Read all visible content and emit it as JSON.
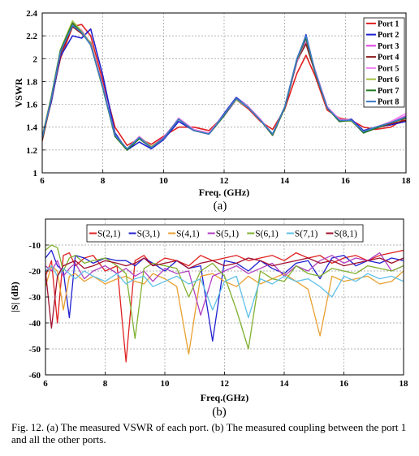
{
  "chart_data": [
    {
      "type": "line",
      "panel_label": "(a)",
      "xlabel": "Freq. (GHz)",
      "ylabel": "VSWR",
      "xlim": [
        6,
        18
      ],
      "ylim": [
        1,
        2.4
      ],
      "xticks": [
        6,
        8,
        10,
        12,
        14,
        16,
        18
      ],
      "yticks": [
        1,
        1.2,
        1.4,
        1.6,
        1.8,
        2,
        2.2,
        2.4
      ],
      "grid": true,
      "legend_position": "top-right",
      "x": [
        6.0,
        6.3,
        6.6,
        7.0,
        7.3,
        7.6,
        8.0,
        8.4,
        8.8,
        9.2,
        9.6,
        10.0,
        10.5,
        11.0,
        11.5,
        12.0,
        12.4,
        12.8,
        13.2,
        13.6,
        14.0,
        14.4,
        14.7,
        15.0,
        15.4,
        15.8,
        16.2,
        16.6,
        17.0,
        17.5,
        18.0
      ],
      "series": [
        {
          "name": "Port 1",
          "color": "#e02020",
          "values": [
            1.3,
            1.65,
            2.0,
            2.28,
            2.3,
            2.2,
            1.8,
            1.4,
            1.24,
            1.3,
            1.25,
            1.32,
            1.4,
            1.4,
            1.37,
            1.5,
            1.64,
            1.56,
            1.45,
            1.38,
            1.56,
            1.87,
            2.03,
            1.85,
            1.55,
            1.48,
            1.46,
            1.4,
            1.38,
            1.4,
            1.48
          ]
        },
        {
          "name": "Port 2",
          "color": "#2020d0",
          "values": [
            1.32,
            1.62,
            2.02,
            2.2,
            2.18,
            2.26,
            1.85,
            1.35,
            1.2,
            1.27,
            1.21,
            1.29,
            1.45,
            1.37,
            1.34,
            1.52,
            1.66,
            1.58,
            1.46,
            1.33,
            1.58,
            1.97,
            2.21,
            1.88,
            1.58,
            1.45,
            1.47,
            1.37,
            1.4,
            1.42,
            1.45
          ]
        },
        {
          "name": "Port 3",
          "color": "#e040e0",
          "values": [
            1.3,
            1.64,
            2.05,
            2.32,
            2.24,
            2.12,
            1.75,
            1.33,
            1.21,
            1.31,
            1.23,
            1.31,
            1.47,
            1.37,
            1.34,
            1.5,
            1.64,
            1.57,
            1.46,
            1.33,
            1.57,
            1.97,
            2.16,
            1.9,
            1.58,
            1.46,
            1.46,
            1.36,
            1.39,
            1.44,
            1.5
          ]
        },
        {
          "name": "Port 4",
          "color": "#8b1a1a",
          "values": [
            1.28,
            1.64,
            2.04,
            2.28,
            2.22,
            2.14,
            1.75,
            1.32,
            1.2,
            1.3,
            1.22,
            1.3,
            1.47,
            1.37,
            1.34,
            1.5,
            1.65,
            1.57,
            1.46,
            1.33,
            1.57,
            1.98,
            2.13,
            1.88,
            1.57,
            1.45,
            1.46,
            1.35,
            1.39,
            1.43,
            1.46
          ]
        },
        {
          "name": "Port 5",
          "color": "#f080f0",
          "values": [
            1.31,
            1.66,
            2.06,
            2.3,
            2.25,
            2.13,
            1.76,
            1.33,
            1.21,
            1.32,
            1.23,
            1.3,
            1.48,
            1.38,
            1.35,
            1.51,
            1.65,
            1.58,
            1.47,
            1.34,
            1.58,
            1.98,
            2.17,
            1.9,
            1.58,
            1.47,
            1.46,
            1.36,
            1.4,
            1.45,
            1.52
          ]
        },
        {
          "name": "Port 6",
          "color": "#a0c040",
          "values": [
            1.32,
            1.67,
            2.08,
            2.33,
            2.24,
            2.13,
            1.74,
            1.33,
            1.21,
            1.31,
            1.23,
            1.3,
            1.47,
            1.37,
            1.34,
            1.51,
            1.64,
            1.57,
            1.46,
            1.34,
            1.58,
            1.99,
            2.19,
            1.89,
            1.57,
            1.46,
            1.45,
            1.36,
            1.4,
            1.44,
            1.49
          ]
        },
        {
          "name": "Port 7",
          "color": "#207a20",
          "values": [
            1.3,
            1.66,
            2.07,
            2.31,
            2.23,
            2.12,
            1.74,
            1.32,
            1.2,
            1.3,
            1.22,
            1.3,
            1.47,
            1.37,
            1.34,
            1.5,
            1.65,
            1.57,
            1.46,
            1.33,
            1.57,
            1.99,
            2.18,
            1.88,
            1.57,
            1.45,
            1.46,
            1.35,
            1.39,
            1.44,
            1.48
          ]
        },
        {
          "name": "Port 8",
          "color": "#3a7ac8",
          "values": [
            1.31,
            1.65,
            2.06,
            2.29,
            2.23,
            2.12,
            1.75,
            1.33,
            1.21,
            1.31,
            1.22,
            1.3,
            1.47,
            1.37,
            1.34,
            1.51,
            1.65,
            1.57,
            1.46,
            1.34,
            1.58,
            2.0,
            2.2,
            1.89,
            1.57,
            1.46,
            1.46,
            1.36,
            1.4,
            1.44,
            1.49
          ]
        }
      ]
    },
    {
      "type": "line",
      "panel_label": "(b)",
      "xlabel": "Freq.(GHz)",
      "ylabel": "|S| (dB)",
      "xlim": [
        6,
        18
      ],
      "ylim": [
        -60,
        0
      ],
      "xticks": [
        6,
        8,
        10,
        12,
        14,
        16,
        18
      ],
      "yticks": [
        -60,
        -50,
        -40,
        -30,
        -20,
        -10
      ],
      "grid": true,
      "legend_position": "top",
      "x": [
        6.0,
        6.2,
        6.4,
        6.6,
        6.8,
        7.0,
        7.3,
        7.6,
        8.0,
        8.4,
        8.7,
        9.0,
        9.3,
        9.6,
        10.0,
        10.4,
        10.8,
        11.2,
        11.6,
        12.0,
        12.4,
        12.8,
        13.2,
        13.6,
        14.0,
        14.4,
        14.8,
        15.2,
        15.6,
        16.0,
        16.4,
        16.8,
        17.2,
        17.6,
        18.0
      ],
      "series": [
        {
          "name": "S(2,1)",
          "color": "#e02020",
          "values": [
            -22,
            -16,
            -40,
            -14,
            -13,
            -18,
            -15,
            -14,
            -20,
            -18,
            -55,
            -16,
            -14,
            -18,
            -15,
            -16,
            -18,
            -14,
            -16,
            -15,
            -14,
            -16,
            -15,
            -14,
            -16,
            -13,
            -15,
            -14,
            -17,
            -15,
            -14,
            -16,
            -14,
            -13,
            -12
          ]
        },
        {
          "name": "S(3,1)",
          "color": "#2020d0",
          "values": [
            -15,
            -12,
            -18,
            -20,
            -38,
            -14,
            -15,
            -17,
            -15,
            -16,
            -16,
            -18,
            -15,
            -17,
            -20,
            -16,
            -19,
            -18,
            -47,
            -16,
            -17,
            -20,
            -16,
            -19,
            -21,
            -17,
            -16,
            -23,
            -15,
            -14,
            -18,
            -16,
            -17,
            -15,
            -16
          ]
        },
        {
          "name": "S(4,1)",
          "color": "#e8a030",
          "values": [
            -26,
            -18,
            -20,
            -35,
            -22,
            -21,
            -24,
            -22,
            -25,
            -23,
            -22,
            -24,
            -25,
            -21,
            -23,
            -26,
            -52,
            -22,
            -21,
            -24,
            -26,
            -22,
            -25,
            -23,
            -21,
            -24,
            -27,
            -45,
            -22,
            -24,
            -23,
            -22,
            -25,
            -24,
            -20
          ]
        },
        {
          "name": "S(5,1)",
          "color": "#b040c0",
          "values": [
            -18,
            -20,
            -16,
            -22,
            -19,
            -17,
            -23,
            -20,
            -18,
            -21,
            -19,
            -22,
            -20,
            -24,
            -19,
            -21,
            -20,
            -37,
            -22,
            -20,
            -18,
            -21,
            -19,
            -17,
            -22,
            -18,
            -20,
            -16,
            -14,
            -17,
            -15,
            -16,
            -13,
            -20,
            -18
          ]
        },
        {
          "name": "S(6,1)",
          "color": "#80b030",
          "values": [
            -12,
            -10,
            -11,
            -20,
            -15,
            -14,
            -17,
            -16,
            -15,
            -18,
            -21,
            -46,
            -19,
            -17,
            -18,
            -19,
            -30,
            -20,
            -17,
            -22,
            -35,
            -50,
            -20,
            -23,
            -24,
            -18,
            -21,
            -22,
            -19,
            -20,
            -21,
            -18,
            -19,
            -20,
            -18
          ]
        },
        {
          "name": "S(7,1)",
          "color": "#60c0e8",
          "values": [
            -20,
            -18,
            -22,
            -19,
            -21,
            -23,
            -20,
            -22,
            -24,
            -21,
            -25,
            -23,
            -22,
            -26,
            -24,
            -22,
            -25,
            -23,
            -35,
            -24,
            -22,
            -38,
            -23,
            -25,
            -22,
            -24,
            -23,
            -26,
            -30,
            -22,
            -24,
            -21,
            -23,
            -22,
            -24
          ]
        },
        {
          "name": "S(8,1)",
          "color": "#a01030",
          "values": [
            -20,
            -42,
            -22,
            -18,
            -17,
            -16,
            -19,
            -18,
            -16,
            -17,
            -18,
            -17,
            -15,
            -18,
            -17,
            -16,
            -19,
            -17,
            -16,
            -18,
            -17,
            -15,
            -16,
            -18,
            -17,
            -16,
            -15,
            -17,
            -16,
            -18,
            -17,
            -16,
            -15,
            -17,
            -15
          ]
        }
      ]
    }
  ],
  "caption": "Fig. 12. (a) The measured VSWR of each port. (b) The measured coupling between the port 1 and all the other ports."
}
